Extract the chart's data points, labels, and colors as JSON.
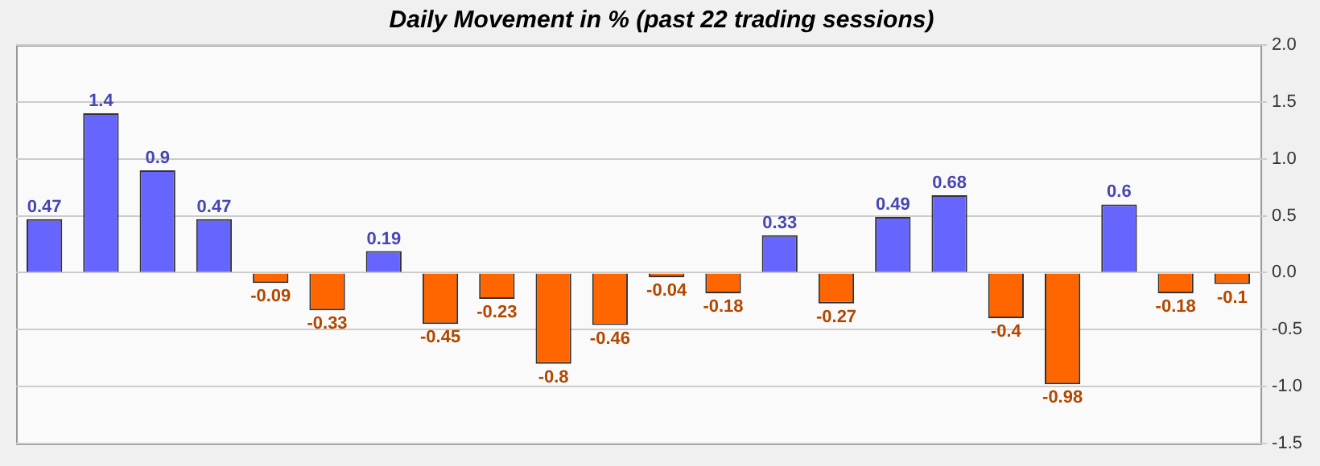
{
  "chart_data": {
    "type": "bar",
    "title": "Daily Movement in % (past 22 trading sessions)",
    "categories": [
      null,
      null,
      null,
      null,
      null,
      null,
      null,
      null,
      null,
      null,
      null,
      null,
      null,
      null,
      null,
      null,
      null,
      null,
      null,
      null,
      null,
      null
    ],
    "values": [
      0.47,
      1.4,
      0.9,
      0.47,
      -0.09,
      -0.33,
      0.19,
      -0.45,
      -0.23,
      -0.8,
      -0.46,
      -0.04,
      -0.18,
      0.33,
      -0.27,
      0.49,
      0.68,
      -0.4,
      -0.98,
      0.6,
      -0.18,
      -0.1
    ],
    "colors": [
      "#6666ff",
      "#6666ff",
      "#6666ff",
      "#6666ff",
      "#ff6600",
      "#ff6600",
      "#6666ff",
      "#ff6600",
      "#ff6600",
      "#ff6600",
      "#ff6600",
      "#ff6600",
      "#ff6600",
      "#6666ff",
      "#ff6600",
      "#6666ff",
      "#6666ff",
      "#ff6600",
      "#ff6600",
      "#6666ff",
      "#ff6600",
      "#ff6600"
    ],
    "ylim": [
      -1.5,
      2
    ],
    "yticks": [
      {
        "value": -1.5,
        "label": "-1.5"
      },
      {
        "value": -1,
        "label": "-1.0"
      },
      {
        "value": -0.5,
        "label": "-0.5"
      },
      {
        "value": 0,
        "label": "0.0"
      },
      {
        "value": 0.5,
        "label": "0.5"
      },
      {
        "value": 1,
        "label": "1.0"
      },
      {
        "value": 1.5,
        "label": "1.5"
      },
      {
        "value": 2,
        "label": "2.0"
      }
    ],
    "grid": "y",
    "data_labels": true,
    "tick_labels": "y",
    "legend": false
  }
}
